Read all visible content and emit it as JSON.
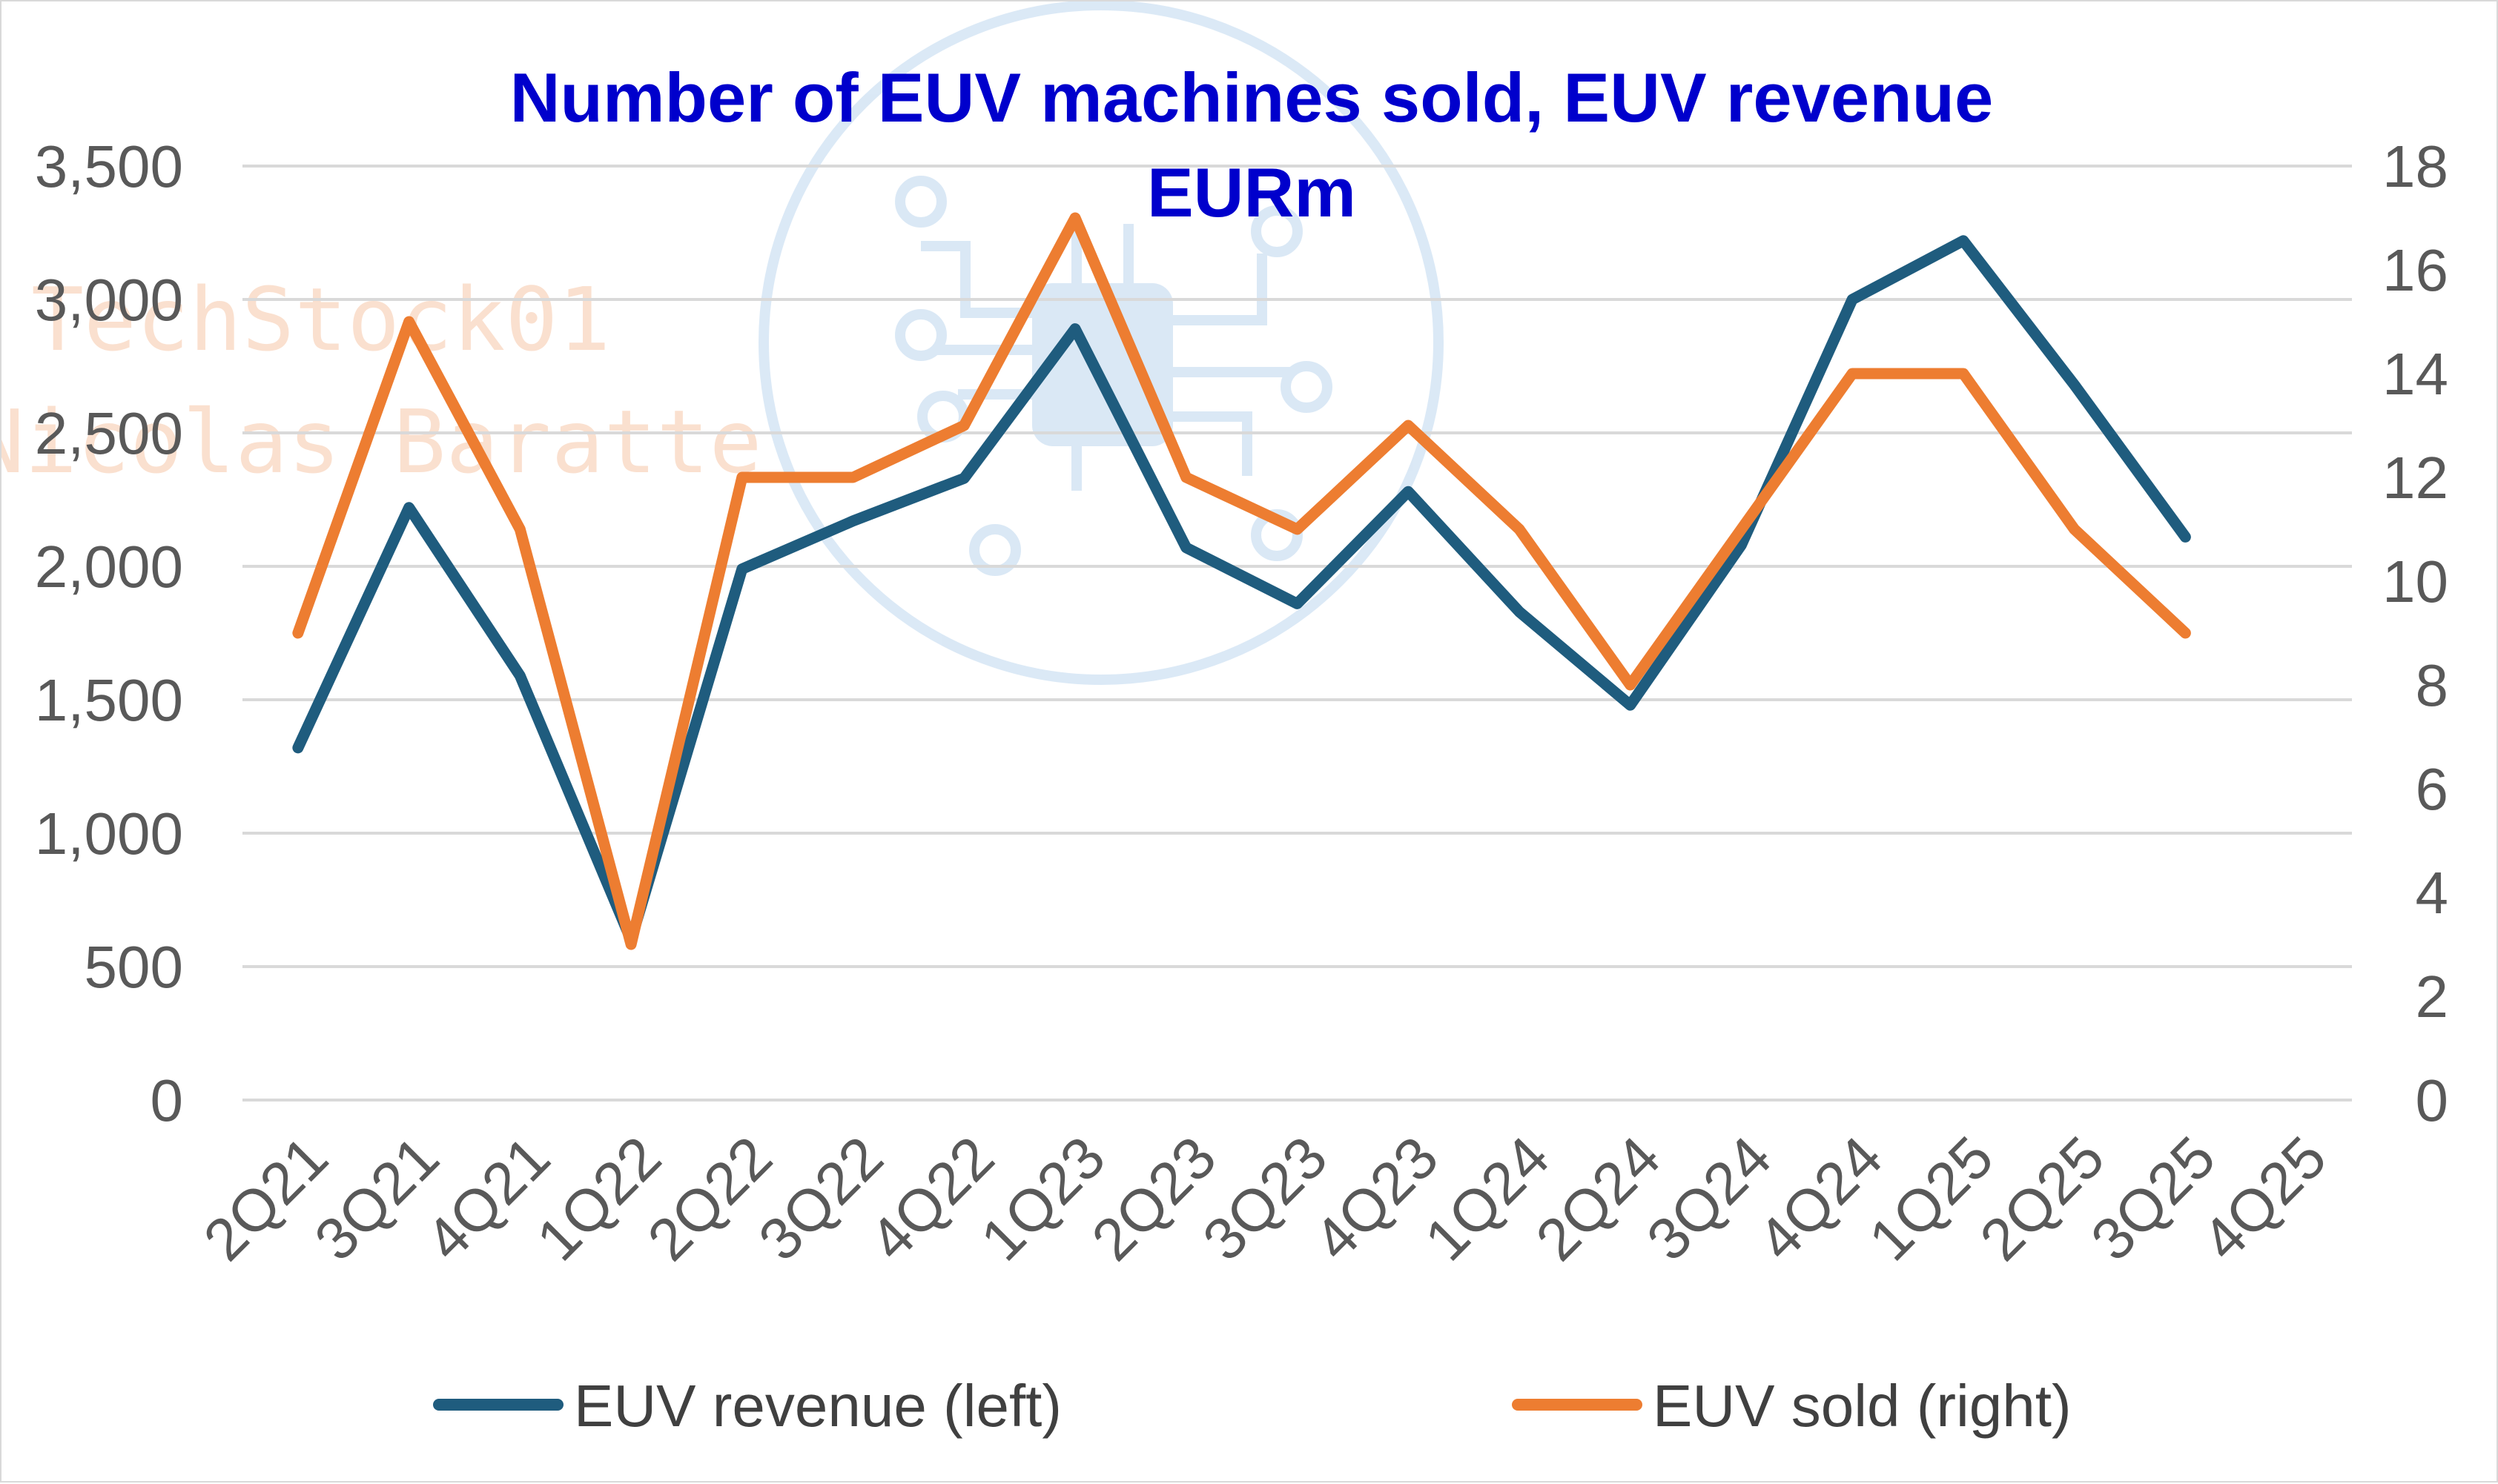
{
  "chart_data": {
    "type": "line",
    "title_lines": [
      "Number of EUV machines sold, EUV revenue",
      "EURm"
    ],
    "categories": [
      "2Q21",
      "3Q21",
      "4Q21",
      "1Q22",
      "2Q22",
      "3Q22",
      "4Q22",
      "1Q23",
      "2Q23",
      "3Q23",
      "4Q23",
      "1Q24",
      "2Q24",
      "3Q24",
      "4Q24",
      "1Q25",
      "2Q25",
      "3Q25",
      "4Q25"
    ],
    "left_axis": {
      "ticks": [
        "0",
        "500",
        "1,000",
        "1,500",
        "2,000",
        "2,500",
        "3,000",
        "3,500"
      ],
      "ylim": [
        0,
        3500
      ]
    },
    "right_axis": {
      "ticks": [
        "0",
        "2",
        "4",
        "6",
        "8",
        "10",
        "12",
        "14",
        "16",
        "18"
      ],
      "ylim": [
        0,
        18
      ]
    },
    "grid": true,
    "legend_position": "bottom",
    "series": [
      {
        "name": "EUV revenue (left)",
        "axis": "left",
        "color": "#1f5c7e",
        "values": [
          1320,
          2220,
          1590,
          600,
          1990,
          2170,
          2330,
          2890,
          2070,
          1860,
          2280,
          1830,
          1480,
          2080,
          3000,
          3220,
          2680,
          2110,
          null
        ]
      },
      {
        "name": "EUV sold (right)",
        "axis": "right",
        "color": "#ed7d31",
        "values": [
          9,
          15,
          11,
          3,
          12,
          12,
          13,
          17,
          12,
          11,
          13,
          11,
          8,
          11,
          14,
          14,
          11,
          9,
          null
        ]
      }
    ],
    "watermark": {
      "lines": [
        "TechStock01",
        "Nicolas Baratte"
      ],
      "logo": "chip-circuit-icon"
    }
  }
}
